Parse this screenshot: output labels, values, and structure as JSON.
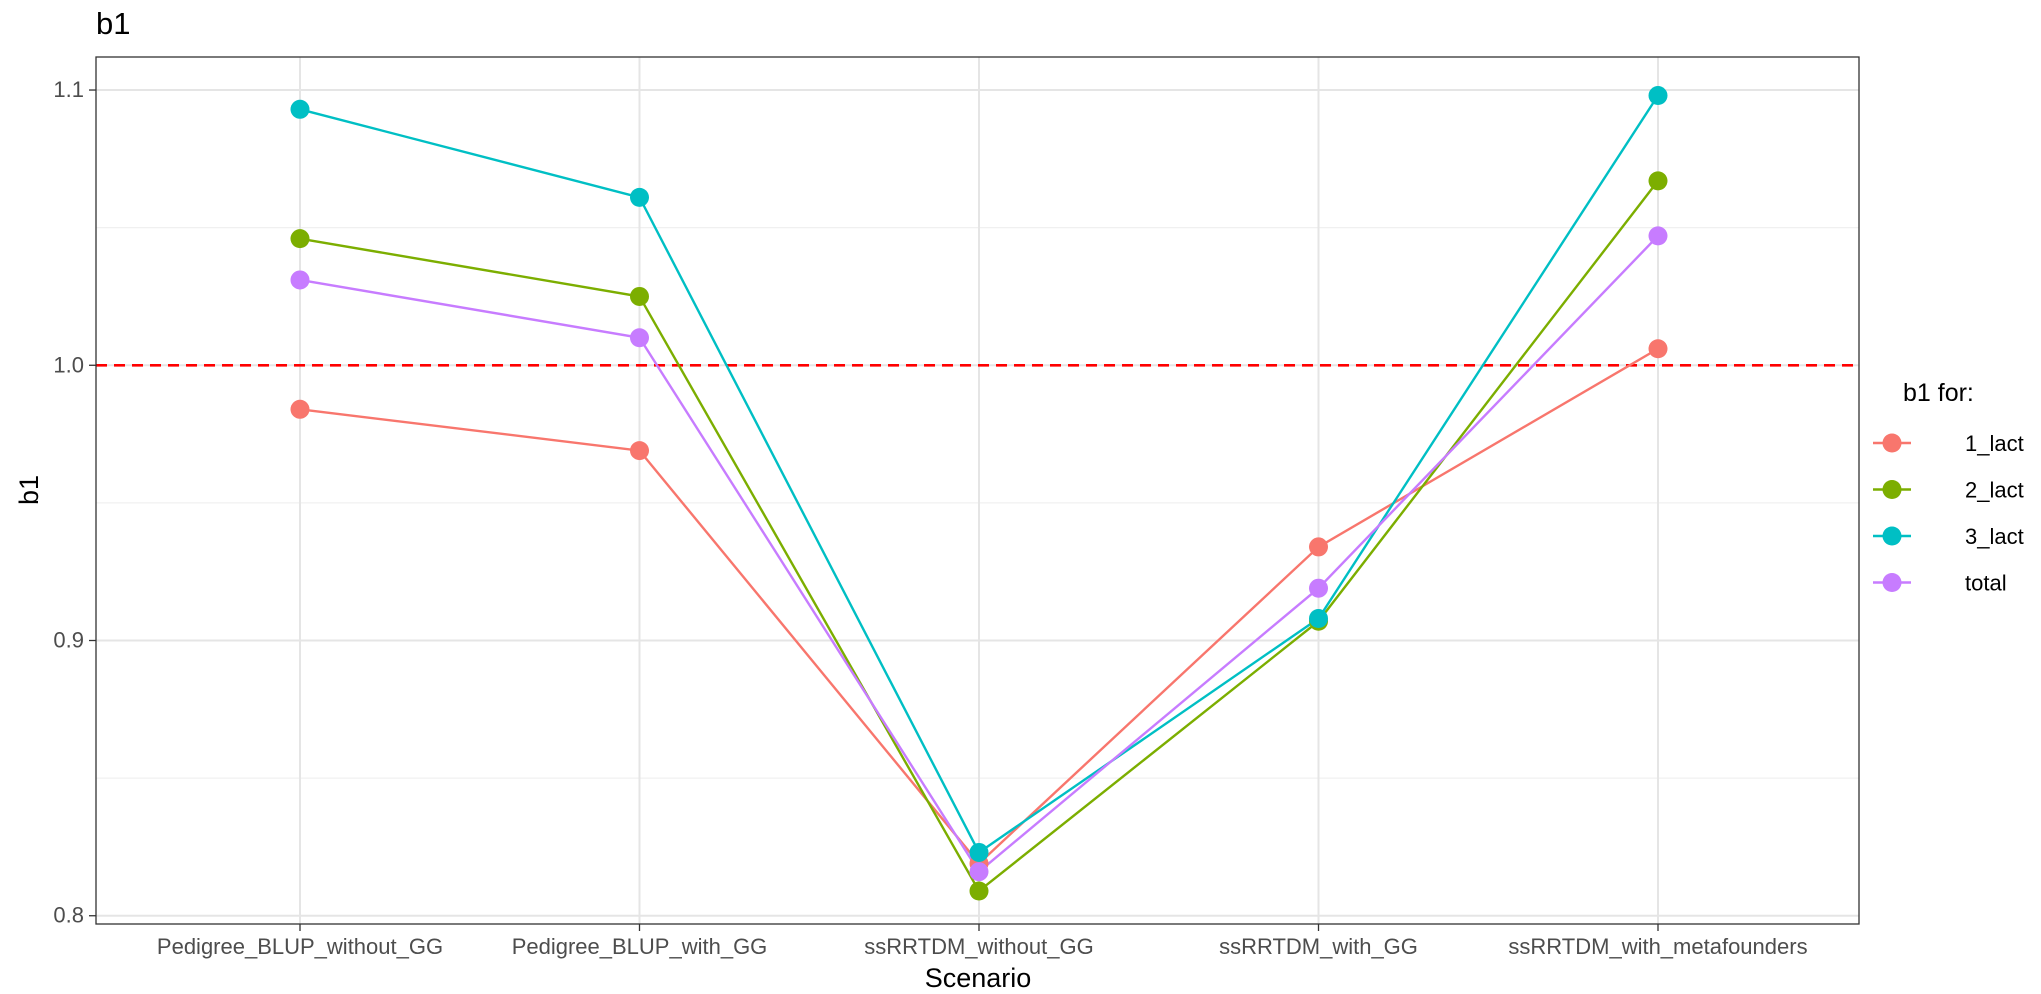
{
  "chart_data": {
    "type": "line",
    "title": "b1",
    "xlabel": "Scenario",
    "ylabel": "b1",
    "categories": [
      "Pedigree_BLUP_without_GG",
      "Pedigree_BLUP_with_GG",
      "ssRRTDM_without_GG",
      "ssRRTDM_with_GG",
      "ssRRTDM_with_metafounders"
    ],
    "ylim": [
      0.797,
      1.112
    ],
    "yticks": [
      0.8,
      0.9,
      1.0,
      1.1
    ],
    "ytick_labels": [
      "0.8",
      "0.9",
      "1.0",
      "1.1"
    ],
    "reference_line": {
      "y": 1.0,
      "color": "#ff0000",
      "style": "dashed"
    },
    "grid": true,
    "legend": {
      "title": "b1 for:",
      "position": "right"
    },
    "series": [
      {
        "name": "1_lact",
        "color": "#F8766D",
        "values": [
          0.984,
          0.969,
          0.819,
          0.934,
          1.006
        ]
      },
      {
        "name": "2_lact",
        "color": "#7CAE00",
        "values": [
          1.046,
          1.025,
          0.809,
          0.907,
          1.067
        ]
      },
      {
        "name": "3_lact",
        "color": "#00BFC4",
        "values": [
          1.093,
          1.061,
          0.823,
          0.908,
          1.098
        ]
      },
      {
        "name": "total",
        "color": "#C77CFF",
        "values": [
          1.031,
          1.01,
          0.816,
          0.919,
          1.047
        ]
      }
    ]
  }
}
